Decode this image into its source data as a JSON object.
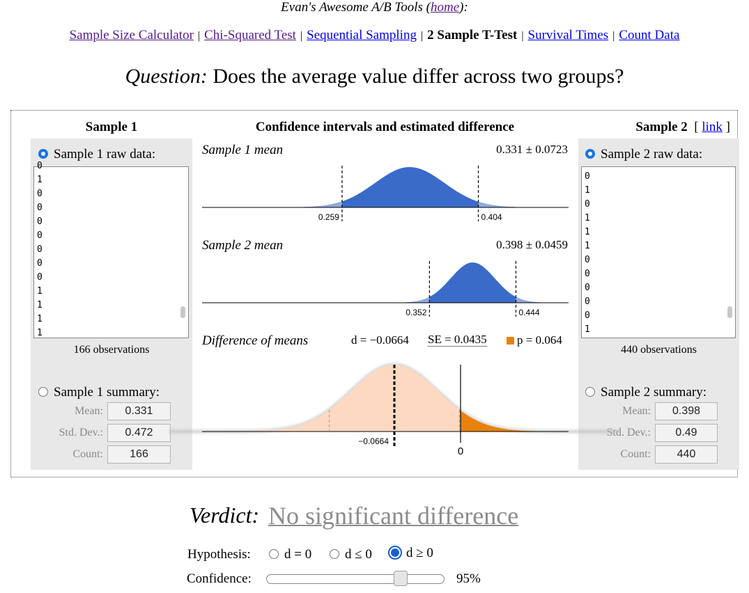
{
  "header": {
    "title_prefix": "Evan's Awesome A/B Tools (",
    "home_link": "home",
    "title_suffix": "):"
  },
  "nav": {
    "items": [
      {
        "label": "Sample Size Calculator",
        "state": "visited"
      },
      {
        "label": "Chi-Squared Test",
        "state": "visited"
      },
      {
        "label": "Sequential Sampling",
        "state": "link"
      },
      {
        "label": "2 Sample T-Test",
        "state": "current"
      },
      {
        "label": "Survival Times",
        "state": "link"
      },
      {
        "label": "Count Data",
        "state": "link"
      }
    ],
    "separator": "|"
  },
  "question": {
    "prefix": "Question:",
    "text": "Does the average value differ across two groups?"
  },
  "sample1": {
    "title": "Sample 1",
    "raw_label": "Sample 1 raw data:",
    "raw_values": [
      "0",
      "1",
      "0",
      "0",
      "0",
      "0",
      "0",
      "0",
      "0",
      "1",
      "1",
      "1",
      "1"
    ],
    "observations": "166 observations",
    "summary_label": "Sample 1 summary:",
    "mean_label": "Mean:",
    "mean_value": "0.331",
    "sd_label": "Std. Dev.:",
    "sd_value": "0.472",
    "count_label": "Count:",
    "count_value": "166"
  },
  "sample2": {
    "title": "Sample 2",
    "link_open": "[",
    "link_label": "link",
    "link_close": "]",
    "raw_label": "Sample 2 raw data:",
    "raw_values": [
      "0",
      "1",
      "0",
      "1",
      "1",
      "1",
      "0",
      "0",
      "0",
      "0",
      "0",
      "1"
    ],
    "observations": "440 observations",
    "summary_label": "Sample 2 summary:",
    "mean_label": "Mean:",
    "mean_value": "0.398",
    "sd_label": "Std. Dev.:",
    "sd_value": "0.49",
    "count_label": "Count:",
    "count_value": "440"
  },
  "center": {
    "title": "Confidence intervals and estimated difference"
  },
  "chart_data": [
    {
      "type": "area",
      "title": "Sample 1 mean",
      "estimate": "0.331 ± 0.0723",
      "mean": 0.331,
      "margin": 0.0723,
      "ci_low": 0.259,
      "ci_high": 0.404,
      "ci_low_label": "0.259",
      "ci_high_label": "0.404",
      "fill": "#3a6bc9"
    },
    {
      "type": "area",
      "title": "Sample 2 mean",
      "estimate": "0.398 ± 0.0459",
      "mean": 0.398,
      "margin": 0.0459,
      "ci_low": 0.352,
      "ci_high": 0.444,
      "ci_low_label": "0.352",
      "ci_high_label": "0.444",
      "fill": "#3a6bc9"
    },
    {
      "type": "area",
      "title": "Difference of means",
      "d_text": "d = −0.0664",
      "se_text": "SE = 0.0435",
      "p_text": "p = 0.064",
      "d": -0.0664,
      "se": 0.0435,
      "p": 0.064,
      "d_label": "−0.0664",
      "zero_label": "0",
      "fill": "#fcd9c0",
      "tail_fill": "#e8820c"
    }
  ],
  "verdict": {
    "label": "Verdict:",
    "value": "No significant difference"
  },
  "hypothesis": {
    "label": "Hypothesis:",
    "options": [
      "d = 0",
      "d ≤ 0",
      "d ≥ 0"
    ],
    "selected": 2
  },
  "confidence": {
    "label": "Confidence:",
    "value": "95%",
    "level": 0.95
  },
  "colors": {
    "link": "#0000ee",
    "visited": "#551a8b",
    "curve_blue": "#3a6bc9",
    "diff_fill": "#fcd9c0",
    "tail_orange": "#e8820c",
    "radio_blue": "#1a73e8"
  }
}
